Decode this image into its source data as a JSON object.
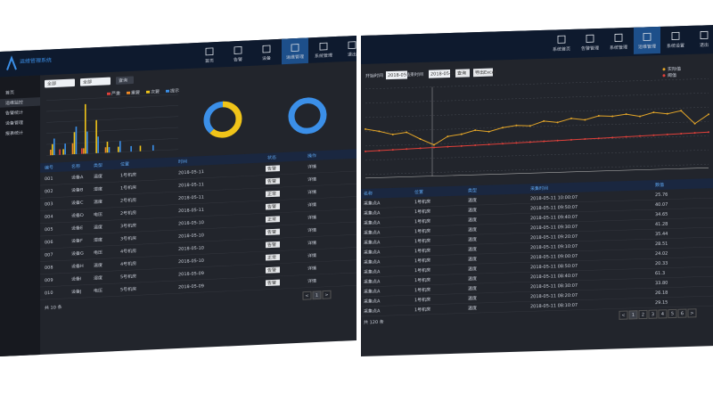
{
  "left": {
    "brand": "运维管理系统",
    "nav": [
      "首页",
      "告警",
      "设备",
      "运维管理",
      "系统管理",
      "退出"
    ],
    "sidebar": [
      "首页",
      "运维监控",
      "告警统计",
      "设备管理",
      "报表统计"
    ],
    "filter": [
      "全部",
      "全部",
      "查询"
    ],
    "bar_chart": {
      "type": "bar",
      "ylim": [
        0,
        10
      ],
      "series": [
        {
          "name": "严重",
          "color": "#e0403a",
          "values": [
            0,
            1,
            0,
            1,
            0,
            0,
            0,
            0,
            0,
            0,
            0,
            0
          ]
        },
        {
          "name": "重要",
          "color": "#f08a24",
          "values": [
            1,
            0,
            2,
            1,
            0,
            1,
            0,
            0,
            0,
            0,
            0,
            0
          ]
        },
        {
          "name": "次要",
          "color": "#f0c419",
          "values": [
            2,
            1,
            4,
            9,
            6,
            2,
            1,
            0,
            1,
            0,
            0,
            0
          ]
        },
        {
          "name": "提示",
          "color": "#3b8fe8",
          "values": [
            3,
            2,
            5,
            4,
            3,
            1,
            2,
            1,
            0,
            1,
            0,
            0
          ]
        }
      ]
    },
    "donut_1": {
      "type": "pie",
      "values": [
        62,
        38
      ],
      "colors": [
        "#f0c419",
        "#3b8fe8"
      ]
    },
    "donut_2": {
      "type": "pie",
      "values": [
        100
      ],
      "colors": [
        "#3b8fe8"
      ]
    },
    "table": {
      "headers": [
        "编号",
        "名称",
        "类型",
        "位置",
        "时间",
        "状态",
        "操作"
      ],
      "rows": [
        [
          "001",
          "设备A",
          "温度",
          "1号机房",
          "2018-05-11",
          "告警",
          "详情"
        ],
        [
          "002",
          "设备B",
          "湿度",
          "1号机房",
          "2018-05-11",
          "告警",
          "详情"
        ],
        [
          "003",
          "设备C",
          "温度",
          "2号机房",
          "2018-05-11",
          "正常",
          "详情"
        ],
        [
          "004",
          "设备D",
          "电压",
          "2号机房",
          "2018-05-11",
          "告警",
          "详情"
        ],
        [
          "005",
          "设备E",
          "温度",
          "3号机房",
          "2018-05-10",
          "正常",
          "详情"
        ],
        [
          "006",
          "设备F",
          "湿度",
          "3号机房",
          "2018-05-10",
          "告警",
          "详情"
        ],
        [
          "007",
          "设备G",
          "电压",
          "4号机房",
          "2018-05-10",
          "告警",
          "详情"
        ],
        [
          "008",
          "设备H",
          "温度",
          "4号机房",
          "2018-05-10",
          "正常",
          "详情"
        ],
        [
          "009",
          "设备I",
          "湿度",
          "5号机房",
          "2018-05-09",
          "告警",
          "详情"
        ],
        [
          "010",
          "设备J",
          "电压",
          "5号机房",
          "2018-05-09",
          "告警",
          "详情"
        ]
      ]
    },
    "footer": "共 10 条",
    "pager": [
      "<",
      "1",
      ">"
    ]
  },
  "right": {
    "nav": [
      "系统首页",
      "告警管理",
      "系统管理",
      "运维管理",
      "系统设置",
      "退出"
    ],
    "filter": [
      "开始时间",
      "2018-05-01",
      "结束时间",
      "2018-05-12",
      "查询",
      "导出Excel"
    ],
    "line_chart": {
      "type": "line",
      "ylim": [
        0,
        100
      ],
      "series": [
        {
          "name": "实际值",
          "color": "#e3a528",
          "values": [
            55,
            52,
            48,
            50,
            42,
            35,
            44,
            46,
            50,
            48,
            52,
            54,
            53,
            58,
            56,
            60,
            58,
            62,
            61,
            63,
            60,
            64,
            62,
            65,
            50,
            60
          ]
        },
        {
          "name": "阈值",
          "color": "#e0403a",
          "values": [
            30,
            30.4,
            30.8,
            31.2,
            31.6,
            32,
            32.4,
            32.8,
            33.2,
            33.6,
            34,
            34.4,
            34.8,
            35.2,
            35.6,
            36,
            36.4,
            36.8,
            37.2,
            37.6,
            38,
            38.4,
            38.8,
            39.2,
            39.6,
            40
          ]
        }
      ]
    },
    "table": {
      "headers": [
        "名称",
        "位置",
        "类型",
        "采集时间",
        "数值"
      ],
      "rows": [
        [
          "采集点A",
          "1号机房",
          "温度",
          "2018-05-11 10:00:07",
          "25.76"
        ],
        [
          "采集点A",
          "1号机房",
          "温度",
          "2018-05-11 09:50:07",
          "40.07"
        ],
        [
          "采集点A",
          "1号机房",
          "温度",
          "2018-05-11 09:40:07",
          "34.65"
        ],
        [
          "采集点A",
          "1号机房",
          "温度",
          "2018-05-11 09:30:07",
          "41.28"
        ],
        [
          "采集点A",
          "1号机房",
          "温度",
          "2018-05-11 09:20:07",
          "35.44"
        ],
        [
          "采集点A",
          "1号机房",
          "温度",
          "2018-05-11 09:10:07",
          "28.51"
        ],
        [
          "采集点A",
          "1号机房",
          "温度",
          "2018-05-11 09:00:07",
          "24.02"
        ],
        [
          "采集点A",
          "1号机房",
          "温度",
          "2018-05-11 08:50:07",
          "20.33"
        ],
        [
          "采集点A",
          "1号机房",
          "温度",
          "2018-05-11 08:40:07",
          "61.3"
        ],
        [
          "采集点A",
          "1号机房",
          "温度",
          "2018-05-11 08:30:07",
          "33.80"
        ],
        [
          "采集点A",
          "1号机房",
          "温度",
          "2018-05-11 08:20:07",
          "26.18"
        ],
        [
          "采集点A",
          "1号机房",
          "温度",
          "2018-05-11 08:10:07",
          "29.15"
        ]
      ]
    },
    "footer": "共 120 条",
    "pager": [
      "<",
      "1",
      "2",
      "3",
      "4",
      "5",
      "6",
      ">"
    ]
  }
}
